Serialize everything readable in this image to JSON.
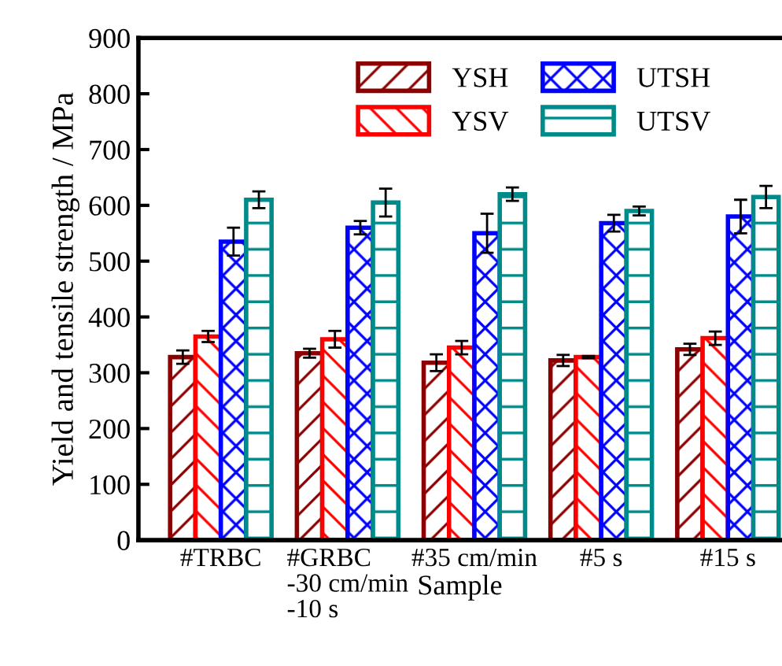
{
  "chart_data": {
    "type": "bar",
    "xlabel": "Sample",
    "ylabel": "Yield and tensile strength / MPa",
    "categories": [
      "#TRBC",
      "#GRBC\n-30 cm/min\n-10 s",
      "#35 cm/min",
      "#5 s",
      "#15 s"
    ],
    "series": [
      {
        "name": "YSH",
        "color": "#8b0000",
        "values": [
          328,
          335,
          318,
          322,
          342
        ],
        "errors": [
          12,
          8,
          15,
          10,
          10
        ]
      },
      {
        "name": "YSV",
        "color": "#ff0000",
        "values": [
          365,
          360,
          345,
          328,
          362
        ],
        "errors": [
          10,
          15,
          12,
          2,
          12
        ]
      },
      {
        "name": "UTSH",
        "color": "#0000ff",
        "values": [
          535,
          560,
          550,
          568,
          580
        ],
        "errors": [
          25,
          12,
          35,
          15,
          30
        ]
      },
      {
        "name": "UTSV",
        "color": "#008b8b",
        "values": [
          610,
          605,
          620,
          590,
          615
        ],
        "errors": [
          15,
          25,
          12,
          8,
          20
        ]
      }
    ],
    "ylim": [
      0,
      900
    ],
    "yticks": [
      0,
      100,
      200,
      300,
      400,
      500,
      600,
      700,
      800,
      900
    ],
    "grid": false,
    "legend": "top right"
  }
}
